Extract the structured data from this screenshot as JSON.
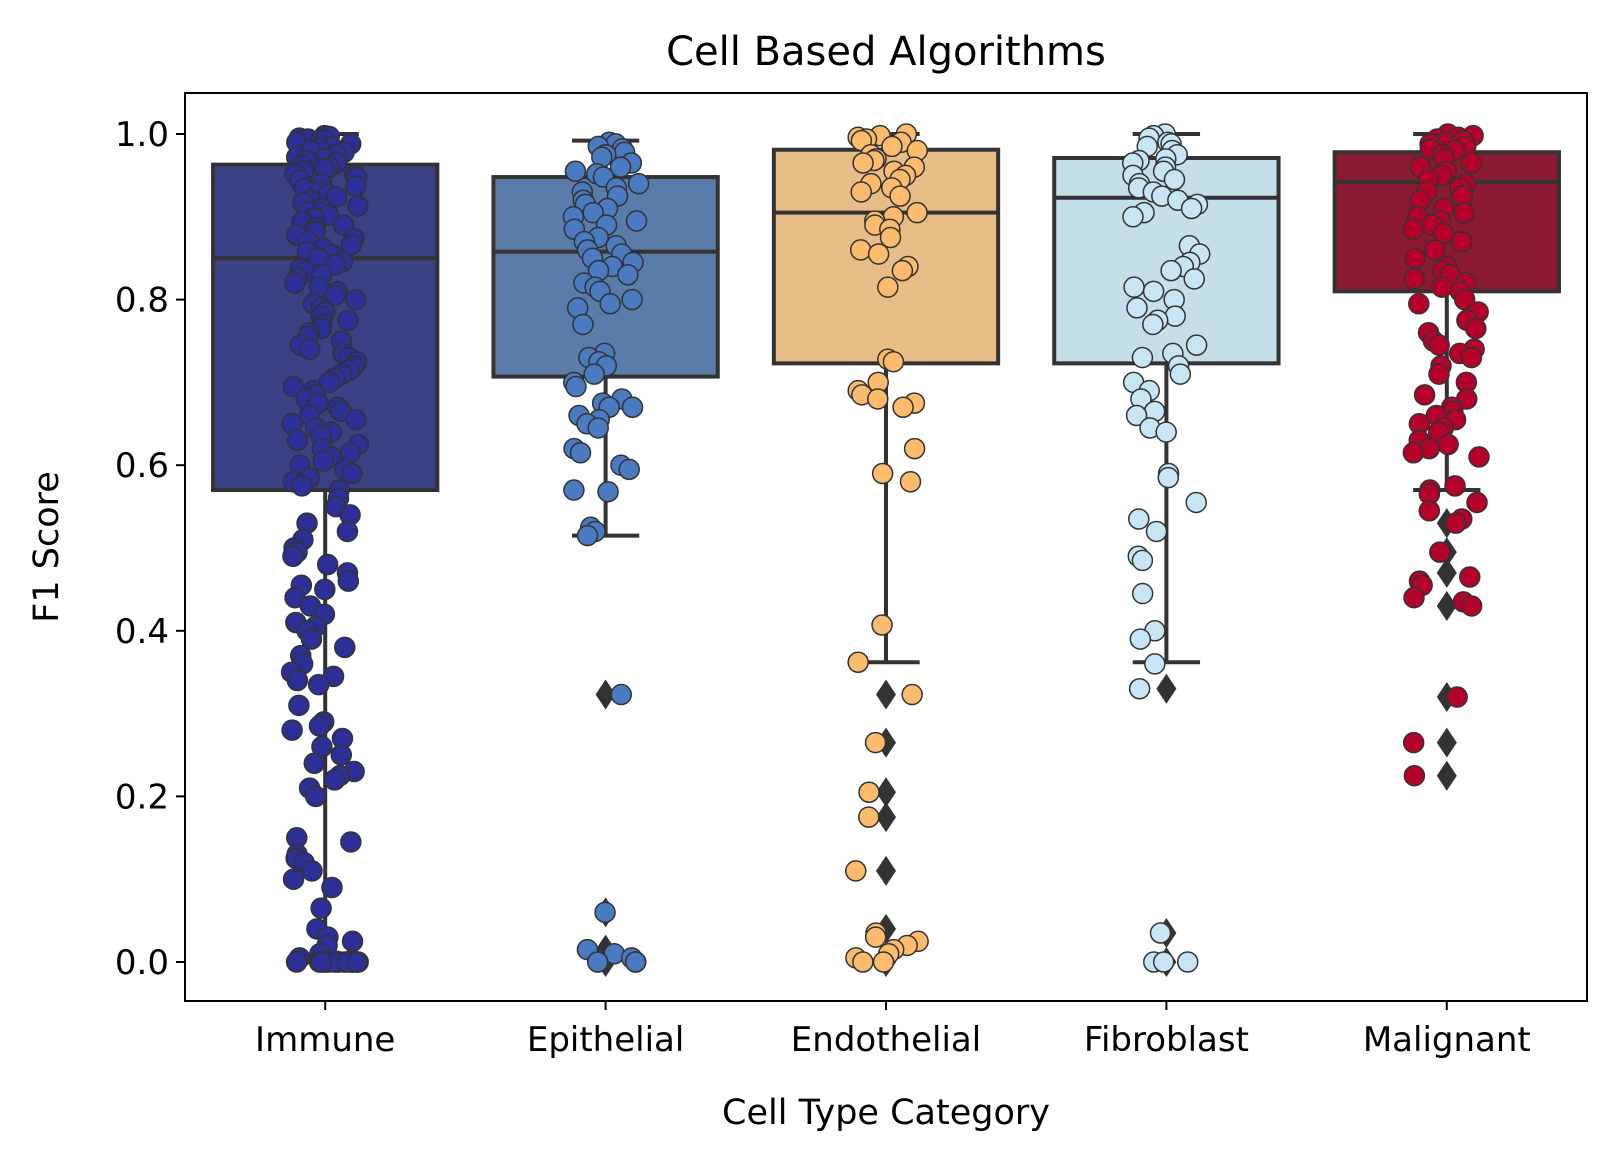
{
  "chart_data": {
    "type": "box",
    "title": "Cell Based Algorithms",
    "xlabel": "Cell Type Category",
    "ylabel": "F1 Score",
    "ylim": [
      -0.05,
      1.05
    ],
    "yticks": [
      "0.0",
      "0.2",
      "0.4",
      "0.6",
      "0.8",
      "1.0"
    ],
    "ytick_values": [
      0.0,
      0.2,
      0.4,
      0.6,
      0.8,
      1.0
    ],
    "grid": false,
    "legend": "none",
    "categories": [
      "Immune",
      "Epithelial",
      "Endothelial",
      "Fibroblast",
      "Malignant"
    ],
    "series": [
      {
        "category": "Immune",
        "color": "#3b4283",
        "point_color": "#2b2f96",
        "whisker_low": 0.0,
        "q1": 0.57,
        "median": 0.85,
        "q3": 0.963,
        "whisker_high": 1.0,
        "outliers": [],
        "points": [
          0.998,
          0.997,
          0.995,
          0.994,
          0.993,
          0.992,
          0.99,
          0.988,
          0.985,
          0.983,
          0.98,
          0.978,
          0.975,
          0.972,
          0.97,
          0.968,
          0.965,
          0.962,
          0.96,
          0.958,
          0.955,
          0.952,
          0.95,
          0.947,
          0.944,
          0.94,
          0.937,
          0.934,
          0.93,
          0.927,
          0.924,
          0.92,
          0.917,
          0.913,
          0.91,
          0.906,
          0.902,
          0.898,
          0.894,
          0.89,
          0.886,
          0.882,
          0.878,
          0.874,
          0.87,
          0.866,
          0.862,
          0.858,
          0.854,
          0.85,
          0.846,
          0.842,
          0.838,
          0.834,
          0.83,
          0.826,
          0.82,
          0.815,
          0.81,
          0.805,
          0.8,
          0.795,
          0.79,
          0.785,
          0.78,
          0.775,
          0.77,
          0.765,
          0.76,
          0.755,
          0.75,
          0.745,
          0.74,
          0.735,
          0.73,
          0.725,
          0.72,
          0.715,
          0.71,
          0.705,
          0.7,
          0.695,
          0.69,
          0.685,
          0.68,
          0.675,
          0.67,
          0.665,
          0.66,
          0.655,
          0.65,
          0.645,
          0.64,
          0.635,
          0.63,
          0.625,
          0.62,
          0.615,
          0.61,
          0.605,
          0.6,
          0.595,
          0.59,
          0.585,
          0.58,
          0.575,
          0.57,
          0.56,
          0.55,
          0.54,
          0.53,
          0.52,
          0.51,
          0.5,
          0.495,
          0.49,
          0.48,
          0.47,
          0.46,
          0.455,
          0.45,
          0.44,
          0.43,
          0.42,
          0.41,
          0.405,
          0.4,
          0.39,
          0.38,
          0.37,
          0.36,
          0.35,
          0.345,
          0.34,
          0.335,
          0.31,
          0.29,
          0.285,
          0.28,
          0.27,
          0.26,
          0.25,
          0.24,
          0.23,
          0.225,
          0.22,
          0.21,
          0.2,
          0.15,
          0.145,
          0.13,
          0.125,
          0.12,
          0.11,
          0.1,
          0.09,
          0.065,
          0.04,
          0.03,
          0.025,
          0.02,
          0.01,
          0.005,
          0.002,
          0.001,
          0.0,
          0.0,
          0.0,
          0.0,
          0.0,
          0.0,
          0.0,
          0.0,
          0.0,
          0.0,
          0.0,
          0.0,
          0.0,
          0.0,
          0.0,
          0.0,
          0.0,
          0.0
        ]
      },
      {
        "category": "Epithelial",
        "color": "#5a7ca8",
        "point_color": "#4a7bc0",
        "whisker_low": 0.515,
        "q1": 0.707,
        "median": 0.858,
        "q3": 0.948,
        "whisker_high": 0.992,
        "outliers": [
          0.323,
          0.06,
          0.015,
          0.0
        ],
        "points": [
          0.99,
          0.988,
          0.985,
          0.982,
          0.978,
          0.975,
          0.972,
          0.965,
          0.96,
          0.955,
          0.952,
          0.948,
          0.94,
          0.935,
          0.93,
          0.925,
          0.92,
          0.915,
          0.91,
          0.905,
          0.9,
          0.895,
          0.89,
          0.885,
          0.875,
          0.87,
          0.865,
          0.86,
          0.855,
          0.85,
          0.845,
          0.84,
          0.835,
          0.83,
          0.82,
          0.815,
          0.81,
          0.8,
          0.795,
          0.79,
          0.77,
          0.735,
          0.73,
          0.725,
          0.72,
          0.71,
          0.7,
          0.695,
          0.68,
          0.675,
          0.67,
          0.67,
          0.66,
          0.655,
          0.65,
          0.645,
          0.62,
          0.615,
          0.6,
          0.595,
          0.57,
          0.568,
          0.525,
          0.52,
          0.515,
          0.323,
          0.06,
          0.015,
          0.01,
          0.005,
          0.0,
          0.0,
          0.0
        ]
      },
      {
        "category": "Endothelial",
        "color": "#e8bc87",
        "point_color": "#fdbb6d",
        "whisker_low": 0.362,
        "q1": 0.723,
        "median": 0.905,
        "q3": 0.981,
        "whisker_high": 1.0,
        "outliers": [
          0.323,
          0.265,
          0.205,
          0.175,
          0.11,
          0.04,
          0.0
        ],
        "points": [
          1.0,
          0.998,
          0.996,
          0.994,
          0.992,
          0.99,
          0.985,
          0.98,
          0.975,
          0.97,
          0.968,
          0.965,
          0.96,
          0.955,
          0.95,
          0.945,
          0.94,
          0.935,
          0.93,
          0.925,
          0.905,
          0.9,
          0.895,
          0.89,
          0.885,
          0.875,
          0.86,
          0.855,
          0.84,
          0.835,
          0.815,
          0.728,
          0.725,
          0.7,
          0.69,
          0.685,
          0.68,
          0.675,
          0.67,
          0.62,
          0.59,
          0.58,
          0.407,
          0.362,
          0.323,
          0.265,
          0.205,
          0.175,
          0.11,
          0.035,
          0.03,
          0.025,
          0.02,
          0.015,
          0.01,
          0.005,
          0.0,
          0.0
        ]
      },
      {
        "category": "Fibroblast",
        "color": "#c4dfe8",
        "point_color": "#c7e6f5",
        "whisker_low": 0.362,
        "q1": 0.723,
        "median": 0.923,
        "q3": 0.971,
        "whisker_high": 1.0,
        "outliers": [
          0.33,
          0.035,
          0.0
        ],
        "points": [
          1.0,
          0.998,
          0.995,
          0.99,
          0.988,
          0.985,
          0.98,
          0.975,
          0.97,
          0.968,
          0.965,
          0.96,
          0.955,
          0.95,
          0.945,
          0.94,
          0.935,
          0.93,
          0.925,
          0.92,
          0.915,
          0.91,
          0.905,
          0.9,
          0.865,
          0.855,
          0.845,
          0.84,
          0.835,
          0.825,
          0.815,
          0.81,
          0.8,
          0.79,
          0.78,
          0.775,
          0.77,
          0.745,
          0.735,
          0.73,
          0.72,
          0.71,
          0.7,
          0.69,
          0.68,
          0.665,
          0.66,
          0.645,
          0.64,
          0.59,
          0.585,
          0.555,
          0.535,
          0.52,
          0.49,
          0.485,
          0.445,
          0.4,
          0.39,
          0.36,
          0.33,
          0.035,
          0.0,
          0.0,
          0.0
        ]
      },
      {
        "category": "Malignant",
        "color": "#891a30",
        "point_color": "#b5002a",
        "whisker_low": 0.57,
        "q1": 0.81,
        "median": 0.942,
        "q3": 0.978,
        "whisker_high": 1.0,
        "outliers": [
          0.53,
          0.495,
          0.47,
          0.43,
          0.32,
          0.265,
          0.225
        ],
        "points": [
          1.0,
          0.998,
          0.996,
          0.994,
          0.992,
          0.99,
          0.988,
          0.985,
          0.982,
          0.98,
          0.975,
          0.97,
          0.965,
          0.96,
          0.955,
          0.95,
          0.945,
          0.94,
          0.935,
          0.93,
          0.925,
          0.92,
          0.91,
          0.905,
          0.9,
          0.895,
          0.89,
          0.885,
          0.88,
          0.87,
          0.86,
          0.85,
          0.84,
          0.835,
          0.83,
          0.825,
          0.82,
          0.815,
          0.81,
          0.8,
          0.795,
          0.785,
          0.775,
          0.765,
          0.76,
          0.75,
          0.745,
          0.74,
          0.735,
          0.73,
          0.72,
          0.71,
          0.7,
          0.685,
          0.68,
          0.67,
          0.665,
          0.66,
          0.655,
          0.65,
          0.645,
          0.64,
          0.63,
          0.625,
          0.62,
          0.615,
          0.61,
          0.575,
          0.57,
          0.565,
          0.555,
          0.545,
          0.535,
          0.53,
          0.495,
          0.465,
          0.46,
          0.455,
          0.44,
          0.435,
          0.43,
          0.32,
          0.265,
          0.225
        ]
      }
    ]
  }
}
